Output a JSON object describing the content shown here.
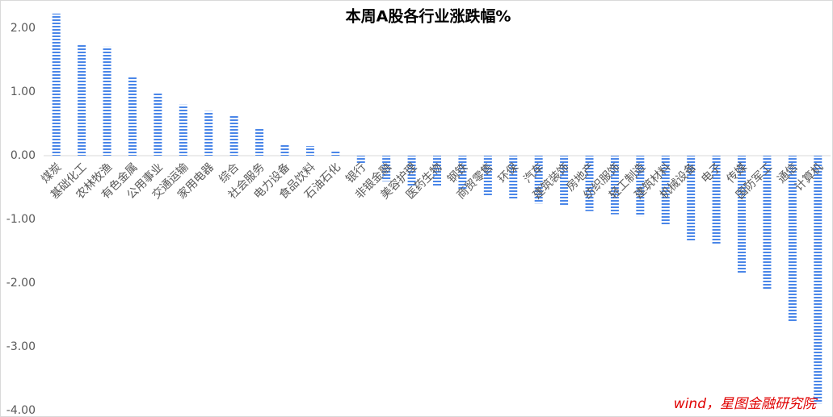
{
  "chart_data": {
    "type": "bar",
    "title": "本周A股各行业涨跌幅%",
    "categories": [
      "煤炭",
      "基础化工",
      "农林牧渔",
      "有色金属",
      "公用事业",
      "交通运输",
      "家用电器",
      "综合",
      "社会服务",
      "电力设备",
      "食品饮料",
      "石油石化",
      "银行",
      "非银金融",
      "美容护理",
      "医药生物",
      "钢铁",
      "商贸零售",
      "环保",
      "汽车",
      "建筑装饰",
      "房地产",
      "纺织服饰",
      "轻工制造",
      "建筑材料",
      "机械设备",
      "电子",
      "传媒",
      "国防军工",
      "通信",
      "计算机"
    ],
    "values": [
      2.23,
      1.75,
      1.71,
      1.24,
      0.99,
      0.8,
      0.7,
      0.63,
      0.43,
      0.19,
      0.15,
      0.08,
      -0.13,
      -0.4,
      -0.49,
      -0.47,
      -0.54,
      -0.63,
      -0.68,
      -0.75,
      -0.78,
      -0.87,
      -0.92,
      -0.95,
      -1.09,
      -1.35,
      -1.38,
      -1.86,
      -2.09,
      -2.62,
      -3.89
    ],
    "color": "#4a86e8",
    "ylim": [
      -4.0,
      2.3
    ],
    "yticks": [
      {
        "value": -4,
        "label": "-4.00"
      },
      {
        "value": -3,
        "label": "-3.00"
      },
      {
        "value": -2,
        "label": "-2.00"
      },
      {
        "value": -1,
        "label": "-1.00"
      },
      {
        "value": 0,
        "label": "0.00"
      },
      {
        "value": 1,
        "label": "1.00"
      },
      {
        "value": 2,
        "label": "2.00"
      }
    ],
    "watermark": "wind，星图金融研究院"
  }
}
